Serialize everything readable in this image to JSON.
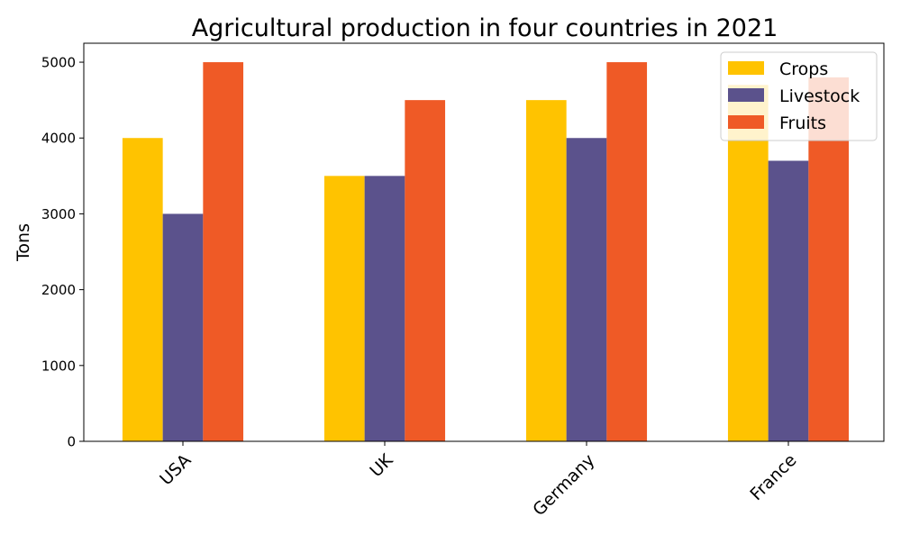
{
  "chart_data": {
    "type": "bar",
    "title": "Agricultural production in four countries in 2021",
    "xlabel": "",
    "ylabel": "Tons",
    "categories": [
      "USA",
      "UK",
      "Germany",
      "France"
    ],
    "series": [
      {
        "name": "Crops",
        "values": [
          4000,
          3500,
          4500,
          4700
        ],
        "color": "#ffc300"
      },
      {
        "name": "Livestock",
        "values": [
          3000,
          3500,
          4000,
          3700
        ],
        "color": "#5b528c"
      },
      {
        "name": "Fruits",
        "values": [
          5000,
          4500,
          5000,
          4800
        ],
        "color": "#ef5a26"
      }
    ],
    "ylim": [
      0,
      5250
    ],
    "yticks": [
      0,
      1000,
      2000,
      3000,
      4000,
      5000
    ],
    "grid": false,
    "legend_position": "top-right"
  }
}
